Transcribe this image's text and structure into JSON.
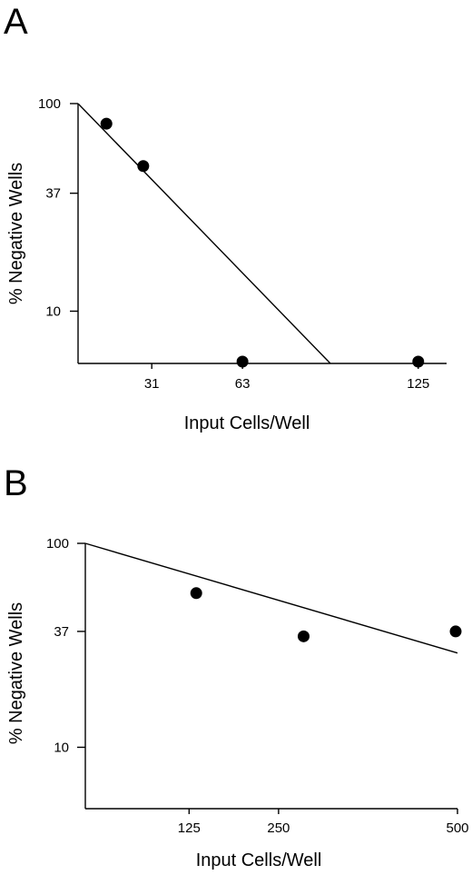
{
  "chart_data": [
    {
      "type": "scatter",
      "panel": "A",
      "xlabel": "Input Cells/Well",
      "ylabel": "% Negative Wells",
      "y_scale": "log",
      "xlim": [
        5,
        135
      ],
      "ylim": [
        5.6,
        100
      ],
      "x_ticks": [
        31,
        63,
        125
      ],
      "y_ticks": [
        100,
        37,
        10
      ],
      "points": [
        {
          "x": 15,
          "y": 80
        },
        {
          "x": 28,
          "y": 50
        },
        {
          "x": 63,
          "y": 5.6
        },
        {
          "x": 125,
          "y": 5.6
        }
      ],
      "fit_line": [
        {
          "x": 5,
          "y": 100
        },
        {
          "x": 94,
          "y": 5.6
        }
      ]
    },
    {
      "type": "scatter",
      "panel": "B",
      "xlabel": "Input Cells/Well",
      "ylabel": "% Negative Wells",
      "y_scale": "log",
      "xlim": [
        -20,
        500
      ],
      "ylim": [
        5,
        100
      ],
      "x_ticks": [
        125,
        250,
        500
      ],
      "y_ticks": [
        100,
        37,
        10
      ],
      "points": [
        {
          "x": 135,
          "y": 57
        },
        {
          "x": 285,
          "y": 35
        },
        {
          "x": 500,
          "y": 37
        }
      ],
      "fit_line": [
        {
          "x": -20,
          "y": 100
        },
        {
          "x": 500,
          "y": 29
        }
      ]
    }
  ]
}
